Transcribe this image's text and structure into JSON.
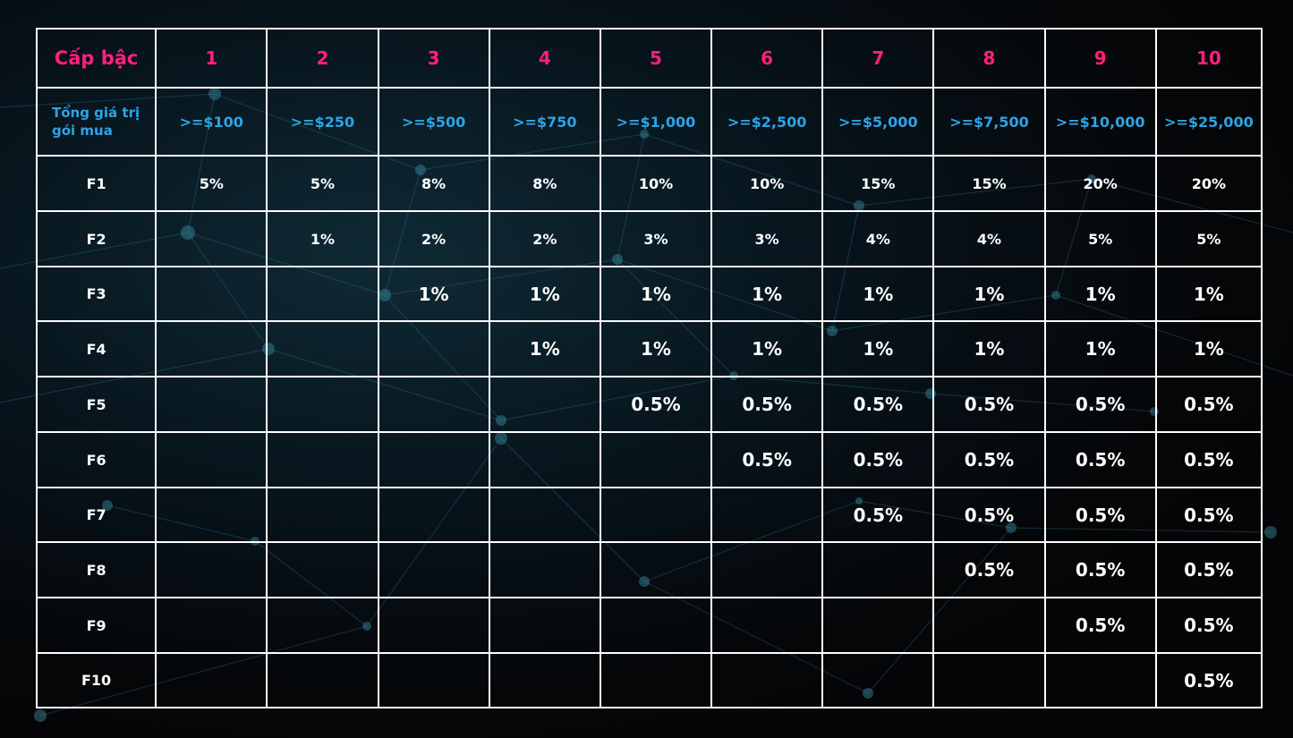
{
  "table": {
    "corner_label": "Cấp bậc",
    "purchase_value_label": "Tổng giá trị gói mua",
    "levels": [
      "1",
      "2",
      "3",
      "4",
      "5",
      "6",
      "7",
      "8",
      "9",
      "10"
    ],
    "thresholds": [
      ">=$100",
      ">=$250",
      ">=$500",
      ">=$750",
      ">=$1,000",
      ">=$2,500",
      ">=$5,000",
      ">=$7,500",
      ">=$10,000",
      ">=$25,000"
    ],
    "rows": [
      {
        "label": "F1",
        "values": [
          "5%",
          "5%",
          "8%",
          "8%",
          "10%",
          "10%",
          "15%",
          "15%",
          "20%",
          "20%"
        ]
      },
      {
        "label": "F2",
        "values": [
          "",
          "1%",
          "2%",
          "2%",
          "3%",
          "3%",
          "4%",
          "4%",
          "5%",
          "5%"
        ]
      },
      {
        "label": "F3",
        "values": [
          "",
          "",
          "1%",
          "1%",
          "1%",
          "1%",
          "1%",
          "1%",
          "1%",
          "1%"
        ]
      },
      {
        "label": "F4",
        "values": [
          "",
          "",
          "",
          "1%",
          "1%",
          "1%",
          "1%",
          "1%",
          "1%",
          "1%"
        ]
      },
      {
        "label": "F5",
        "values": [
          "",
          "",
          "",
          "",
          "0.5%",
          "0.5%",
          "0.5%",
          "0.5%",
          "0.5%",
          "0.5%"
        ]
      },
      {
        "label": "F6",
        "values": [
          "",
          "",
          "",
          "",
          "",
          "0.5%",
          "0.5%",
          "0.5%",
          "0.5%",
          "0.5%"
        ]
      },
      {
        "label": "F7",
        "values": [
          "",
          "",
          "",
          "",
          "",
          "",
          "0.5%",
          "0.5%",
          "0.5%",
          "0.5%"
        ]
      },
      {
        "label": "F8",
        "values": [
          "",
          "",
          "",
          "",
          "",
          "",
          "",
          "0.5%",
          "0.5%",
          "0.5%"
        ]
      },
      {
        "label": "F9",
        "values": [
          "",
          "",
          "",
          "",
          "",
          "",
          "",
          "",
          "0.5%",
          "0.5%"
        ]
      },
      {
        "label": "F10",
        "values": [
          "",
          "",
          "",
          "",
          "",
          "",
          "",
          "",
          "",
          "0.5%"
        ]
      }
    ]
  },
  "colors": {
    "level_text": "#ff1f7a",
    "threshold_text": "#2ea3e6",
    "value_text": "#ffffff",
    "grid_lines": "#ffffff",
    "background": "#050608"
  }
}
